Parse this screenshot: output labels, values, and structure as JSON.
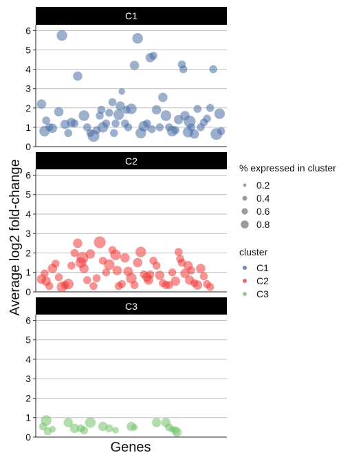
{
  "colors": {
    "C1": "#4a6fa5",
    "C2": "#ee3b3b",
    "C3": "#73c36c",
    "strip_bg": "#000000",
    "strip_text": "#ffffff",
    "grid": "#bdbdbd",
    "legend_size_dot": "#7a7a7a"
  },
  "chart_data": {
    "type": "scatter",
    "xlabel": "Genes",
    "ylabel": "Average log2 fold-change",
    "ylim": [
      0,
      6.3
    ],
    "yticks": [
      "0",
      "1",
      "2",
      "3",
      "4",
      "5",
      "6"
    ],
    "xticks": "none",
    "grid": "horizontal",
    "legend_placement": "right",
    "size_legend": {
      "title": "% expressed in cluster",
      "labels": [
        "0.2",
        "0.4",
        "0.6",
        "0.8"
      ],
      "values": [
        0.2,
        0.4,
        0.6,
        0.8
      ]
    },
    "color_legend": {
      "title": "cluster",
      "labels": [
        "C1",
        "C2",
        "C3"
      ]
    },
    "panels": [
      {
        "name": "C1",
        "color_key": "C1",
        "points": [
          {
            "x": 0.5,
            "y": 2.2,
            "s": 0.5
          },
          {
            "x": 1.5,
            "y": 0.8,
            "s": 0.6
          },
          {
            "x": 2,
            "y": 1.35,
            "s": 0.4
          },
          {
            "x": 3,
            "y": 1.0,
            "s": 0.4
          },
          {
            "x": 4,
            "y": 0.95,
            "s": 0.5
          },
          {
            "x": 6,
            "y": 1.8,
            "s": 0.5
          },
          {
            "x": 7,
            "y": 5.75,
            "s": 0.6
          },
          {
            "x": 8,
            "y": 1.15,
            "s": 0.5
          },
          {
            "x": 9,
            "y": 0.7,
            "s": 0.4
          },
          {
            "x": 10,
            "y": 1.25,
            "s": 0.5
          },
          {
            "x": 11,
            "y": 1.2,
            "s": 0.4
          },
          {
            "x": 12,
            "y": 3.65,
            "s": 0.5
          },
          {
            "x": 14,
            "y": 1.6,
            "s": 0.6
          },
          {
            "x": 15,
            "y": 1.0,
            "s": 0.4
          },
          {
            "x": 16,
            "y": 0.7,
            "s": 0.4
          },
          {
            "x": 17,
            "y": 0.55,
            "s": 0.7
          },
          {
            "x": 18,
            "y": 0.85,
            "s": 0.4
          },
          {
            "x": 19,
            "y": 1.6,
            "s": 0.4
          },
          {
            "x": 19.5,
            "y": 1.9,
            "s": 0.4
          },
          {
            "x": 20,
            "y": 1.0,
            "s": 0.6
          },
          {
            "x": 21,
            "y": 1.2,
            "s": 0.4
          },
          {
            "x": 22,
            "y": 1.75,
            "s": 0.4
          },
          {
            "x": 23,
            "y": 2.3,
            "s": 0.4
          },
          {
            "x": 23.5,
            "y": 0.7,
            "s": 0.4
          },
          {
            "x": 24,
            "y": 1.2,
            "s": 0.4
          },
          {
            "x": 25,
            "y": 1.65,
            "s": 0.6
          },
          {
            "x": 25.5,
            "y": 2.1,
            "s": 0.5
          },
          {
            "x": 26,
            "y": 2.85,
            "s": 0.3
          },
          {
            "x": 27,
            "y": 1.2,
            "s": 0.4
          },
          {
            "x": 27.5,
            "y": 1.9,
            "s": 0.4
          },
          {
            "x": 28,
            "y": 1.0,
            "s": 0.4
          },
          {
            "x": 29,
            "y": 1.95,
            "s": 0.6
          },
          {
            "x": 30,
            "y": 4.2,
            "s": 0.5
          },
          {
            "x": 31,
            "y": 5.6,
            "s": 0.6
          },
          {
            "x": 32,
            "y": 0.7,
            "s": 0.6
          },
          {
            "x": 33,
            "y": 1.05,
            "s": 0.6
          },
          {
            "x": 34,
            "y": 1.2,
            "s": 0.4
          },
          {
            "x": 35,
            "y": 4.6,
            "s": 0.5
          },
          {
            "x": 35.5,
            "y": 0.9,
            "s": 0.4
          },
          {
            "x": 36,
            "y": 4.7,
            "s": 0.4
          },
          {
            "x": 37,
            "y": 1.9,
            "s": 0.5
          },
          {
            "x": 38,
            "y": 1.0,
            "s": 0.4
          },
          {
            "x": 39,
            "y": 2.55,
            "s": 0.5
          },
          {
            "x": 40,
            "y": 1.6,
            "s": 0.6
          },
          {
            "x": 41,
            "y": 1.0,
            "s": 0.4
          },
          {
            "x": 42,
            "y": 0.8,
            "s": 0.6
          },
          {
            "x": 43,
            "y": 0.85,
            "s": 0.4
          },
          {
            "x": 44,
            "y": 1.4,
            "s": 0.5
          },
          {
            "x": 45,
            "y": 4.25,
            "s": 0.4
          },
          {
            "x": 45.5,
            "y": 4.0,
            "s": 0.4
          },
          {
            "x": 46,
            "y": 1.6,
            "s": 0.5
          },
          {
            "x": 47,
            "y": 0.75,
            "s": 0.6
          },
          {
            "x": 47.5,
            "y": 1.3,
            "s": 0.7
          },
          {
            "x": 48,
            "y": 1.0,
            "s": 0.4
          },
          {
            "x": 49,
            "y": 0.65,
            "s": 0.5
          },
          {
            "x": 50,
            "y": 1.95,
            "s": 0.4
          },
          {
            "x": 51,
            "y": 1.0,
            "s": 0.4
          },
          {
            "x": 52,
            "y": 1.25,
            "s": 0.4
          },
          {
            "x": 53,
            "y": 1.45,
            "s": 0.4
          },
          {
            "x": 54,
            "y": 2.0,
            "s": 0.4
          },
          {
            "x": 55,
            "y": 4.0,
            "s": 0.4
          },
          {
            "x": 56,
            "y": 0.65,
            "s": 0.7
          },
          {
            "x": 57,
            "y": 1.7,
            "s": 0.6
          },
          {
            "x": 57.5,
            "y": 0.8,
            "s": 0.4
          }
        ]
      },
      {
        "name": "C2",
        "color_key": "C2",
        "points": [
          {
            "x": 0.5,
            "y": 0.65,
            "s": 0.5
          },
          {
            "x": 1.5,
            "y": 0.95,
            "s": 0.4
          },
          {
            "x": 2,
            "y": 0.55,
            "s": 0.5
          },
          {
            "x": 3,
            "y": 0.3,
            "s": 0.4
          },
          {
            "x": 4,
            "y": 1.2,
            "s": 0.5
          },
          {
            "x": 5,
            "y": 1.45,
            "s": 0.4
          },
          {
            "x": 6,
            "y": 0.75,
            "s": 0.4
          },
          {
            "x": 7,
            "y": 0.25,
            "s": 0.6
          },
          {
            "x": 8,
            "y": 0.35,
            "s": 0.4
          },
          {
            "x": 9,
            "y": 0.4,
            "s": 0.6
          },
          {
            "x": 10,
            "y": 1.35,
            "s": 0.4
          },
          {
            "x": 11,
            "y": 2.0,
            "s": 0.4
          },
          {
            "x": 12,
            "y": 2.5,
            "s": 0.5
          },
          {
            "x": 13,
            "y": 1.5,
            "s": 0.6
          },
          {
            "x": 13.5,
            "y": 1.75,
            "s": 0.7
          },
          {
            "x": 14,
            "y": 1.2,
            "s": 0.5
          },
          {
            "x": 15,
            "y": 0.6,
            "s": 0.4
          },
          {
            "x": 16,
            "y": 1.95,
            "s": 0.5
          },
          {
            "x": 17,
            "y": 0.3,
            "s": 0.4
          },
          {
            "x": 18,
            "y": 0.7,
            "s": 0.4
          },
          {
            "x": 19,
            "y": 2.55,
            "s": 0.7
          },
          {
            "x": 20,
            "y": 1.6,
            "s": 0.4
          },
          {
            "x": 21,
            "y": 1.0,
            "s": 0.4
          },
          {
            "x": 22,
            "y": 1.4,
            "s": 0.6
          },
          {
            "x": 23,
            "y": 2.15,
            "s": 0.4
          },
          {
            "x": 24,
            "y": 1.9,
            "s": 0.6
          },
          {
            "x": 24.5,
            "y": 1.1,
            "s": 0.5
          },
          {
            "x": 25,
            "y": 0.3,
            "s": 0.4
          },
          {
            "x": 26,
            "y": 0.4,
            "s": 0.4
          },
          {
            "x": 27,
            "y": 1.75,
            "s": 0.5
          },
          {
            "x": 28,
            "y": 1.05,
            "s": 0.5
          },
          {
            "x": 29,
            "y": 0.7,
            "s": 0.6
          },
          {
            "x": 30,
            "y": 0.35,
            "s": 0.4
          },
          {
            "x": 31,
            "y": 1.5,
            "s": 0.5
          },
          {
            "x": 32,
            "y": 2.05,
            "s": 0.6
          },
          {
            "x": 33,
            "y": 0.9,
            "s": 0.4
          },
          {
            "x": 34,
            "y": 0.75,
            "s": 0.5
          },
          {
            "x": 34.5,
            "y": 0.6,
            "s": 0.5
          },
          {
            "x": 35,
            "y": 0.9,
            "s": 0.4
          },
          {
            "x": 36,
            "y": 1.6,
            "s": 0.4
          },
          {
            "x": 37,
            "y": 1.35,
            "s": 0.4
          },
          {
            "x": 38,
            "y": 0.85,
            "s": 0.5
          },
          {
            "x": 39,
            "y": 0.45,
            "s": 0.4
          },
          {
            "x": 40,
            "y": 0.35,
            "s": 0.4
          },
          {
            "x": 41,
            "y": 0.35,
            "s": 0.4
          },
          {
            "x": 42,
            "y": 1.0,
            "s": 0.4
          },
          {
            "x": 43,
            "y": 0.55,
            "s": 0.5
          },
          {
            "x": 44,
            "y": 2.05,
            "s": 0.4
          },
          {
            "x": 44.5,
            "y": 1.7,
            "s": 0.4
          },
          {
            "x": 45,
            "y": 1.5,
            "s": 0.4
          },
          {
            "x": 46,
            "y": 0.95,
            "s": 0.5
          },
          {
            "x": 47,
            "y": 1.35,
            "s": 0.5
          },
          {
            "x": 47.5,
            "y": 0.6,
            "s": 0.5
          },
          {
            "x": 48,
            "y": 1.1,
            "s": 0.4
          },
          {
            "x": 49,
            "y": 0.45,
            "s": 0.4
          },
          {
            "x": 50,
            "y": 0.35,
            "s": 0.5
          },
          {
            "x": 51,
            "y": 1.2,
            "s": 0.5
          },
          {
            "x": 52,
            "y": 0.8,
            "s": 0.4
          },
          {
            "x": 53,
            "y": 0.4,
            "s": 0.4
          },
          {
            "x": 54,
            "y": 0.25,
            "s": 0.4
          }
        ]
      },
      {
        "name": "C3",
        "color_key": "C3",
        "points": [
          {
            "x": 1,
            "y": 0.55,
            "s": 0.4
          },
          {
            "x": 2,
            "y": 0.85,
            "s": 0.6
          },
          {
            "x": 2.5,
            "y": 0.3,
            "s": 0.4
          },
          {
            "x": 4,
            "y": 0.4,
            "s": 0.3
          },
          {
            "x": 9,
            "y": 0.75,
            "s": 0.5
          },
          {
            "x": 11,
            "y": 0.45,
            "s": 0.5
          },
          {
            "x": 13,
            "y": 0.45,
            "s": 0.4
          },
          {
            "x": 14,
            "y": 0.35,
            "s": 0.4
          },
          {
            "x": 16,
            "y": 0.75,
            "s": 0.6
          },
          {
            "x": 20,
            "y": 0.55,
            "s": 0.5
          },
          {
            "x": 22,
            "y": 0.45,
            "s": 0.4
          },
          {
            "x": 24,
            "y": 0.35,
            "s": 0.3
          },
          {
            "x": 29,
            "y": 0.55,
            "s": 0.5
          },
          {
            "x": 30,
            "y": 0.5,
            "s": 0.3
          },
          {
            "x": 37,
            "y": 0.75,
            "s": 0.5
          },
          {
            "x": 40,
            "y": 0.75,
            "s": 0.5
          },
          {
            "x": 41,
            "y": 0.5,
            "s": 0.4
          },
          {
            "x": 42,
            "y": 0.4,
            "s": 0.3
          },
          {
            "x": 43,
            "y": 0.35,
            "s": 0.4
          },
          {
            "x": 43.5,
            "y": 0.25,
            "s": 0.5
          }
        ]
      }
    ]
  }
}
